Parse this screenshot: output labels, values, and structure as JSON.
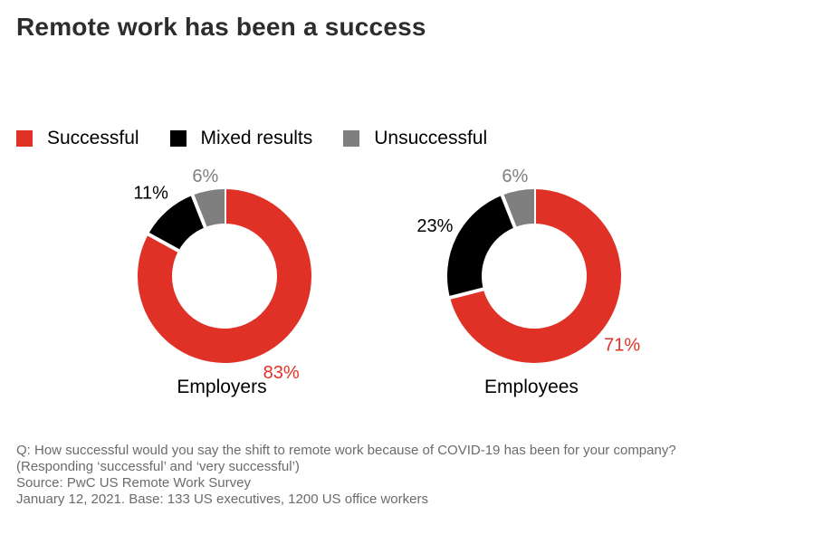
{
  "title": "Remote work has been a success",
  "legend": [
    {
      "label": "Successful",
      "color": "#e03127"
    },
    {
      "label": "Mixed results",
      "color": "#000000"
    },
    {
      "label": "Unsuccessful",
      "color": "#7f7f7f"
    }
  ],
  "chart_data": [
    {
      "type": "pie",
      "title": "Employers",
      "slices": [
        {
          "name": "Successful",
          "value": 83,
          "label": "83%",
          "color": "#e03127"
        },
        {
          "name": "Mixed results",
          "value": 11,
          "label": "11%",
          "color": "#000000"
        },
        {
          "name": "Unsuccessful",
          "value": 6,
          "label": "6%",
          "color": "#7f7f7f"
        }
      ]
    },
    {
      "type": "pie",
      "title": "Employees",
      "slices": [
        {
          "name": "Successful",
          "value": 71,
          "label": "71%",
          "color": "#e03127"
        },
        {
          "name": "Mixed results",
          "value": 23,
          "label": "23%",
          "color": "#000000"
        },
        {
          "name": "Unsuccessful",
          "value": 6,
          "label": "6%",
          "color": "#7f7f7f"
        }
      ]
    }
  ],
  "footnote": {
    "question": "Q: How successful would you say the shift to remote work because of COVID-19 has been for your company?",
    "responding": "(Responding ‘successful’ and ‘very successful’)",
    "source": "Source: PwC US Remote Work Survey",
    "base": "January 12, 2021. Base: 133 US executives, 1200 US office workers"
  }
}
